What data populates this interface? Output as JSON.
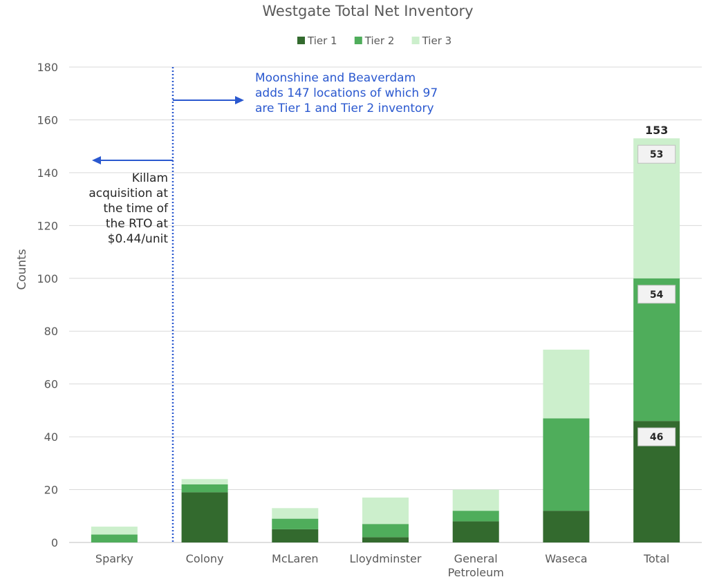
{
  "colors": {
    "tier1": "#336a2e",
    "tier2": "#4fad5b",
    "tier3": "#ccefcc",
    "grid": "#d9d9d9",
    "axis_text": "#595959",
    "annotation_blue": "#2a58cf",
    "annotation_dark": "#262626",
    "label_box_fill": "#f2f2f2",
    "label_box_stroke": "#bfbfbf"
  },
  "chart_data": {
    "type": "bar",
    "stacked": true,
    "title": "Westgate Total Net Inventory",
    "xlabel": "",
    "ylabel": "Counts",
    "ylim": [
      0,
      180
    ],
    "yticks": [
      0,
      20,
      40,
      60,
      80,
      100,
      120,
      140,
      160,
      180
    ],
    "grid": true,
    "legend_position": "top-center",
    "categories": [
      "Sparky",
      "Colony",
      "McLaren",
      "Lloydminster",
      "General Petroleum",
      "Waseca",
      "Total"
    ],
    "series": [
      {
        "name": "Tier 1",
        "color_key": "tier1",
        "values": [
          0,
          19,
          5,
          2,
          8,
          12,
          46
        ]
      },
      {
        "name": "Tier 2",
        "color_key": "tier2",
        "values": [
          3,
          3,
          4,
          5,
          4,
          35,
          54
        ]
      },
      {
        "name": "Tier 3",
        "color_key": "tier3",
        "values": [
          3,
          2,
          4,
          10,
          8,
          26,
          53
        ]
      }
    ],
    "total_labels": [
      {
        "category": "Total",
        "segment_labels": [
          "46",
          "54",
          "53"
        ],
        "total": "153"
      }
    ],
    "annotations": {
      "divider_after_category": "Sparky",
      "right_note_lines": [
        "Moonshine and Beaverdam",
        "adds 147 locations of which 97",
        "are Tier 1 and Tier 2 inventory"
      ],
      "left_note_lines": [
        "Killam",
        "acquisition at",
        "the time of",
        "the RTO at",
        "$0.44/unit"
      ]
    }
  }
}
